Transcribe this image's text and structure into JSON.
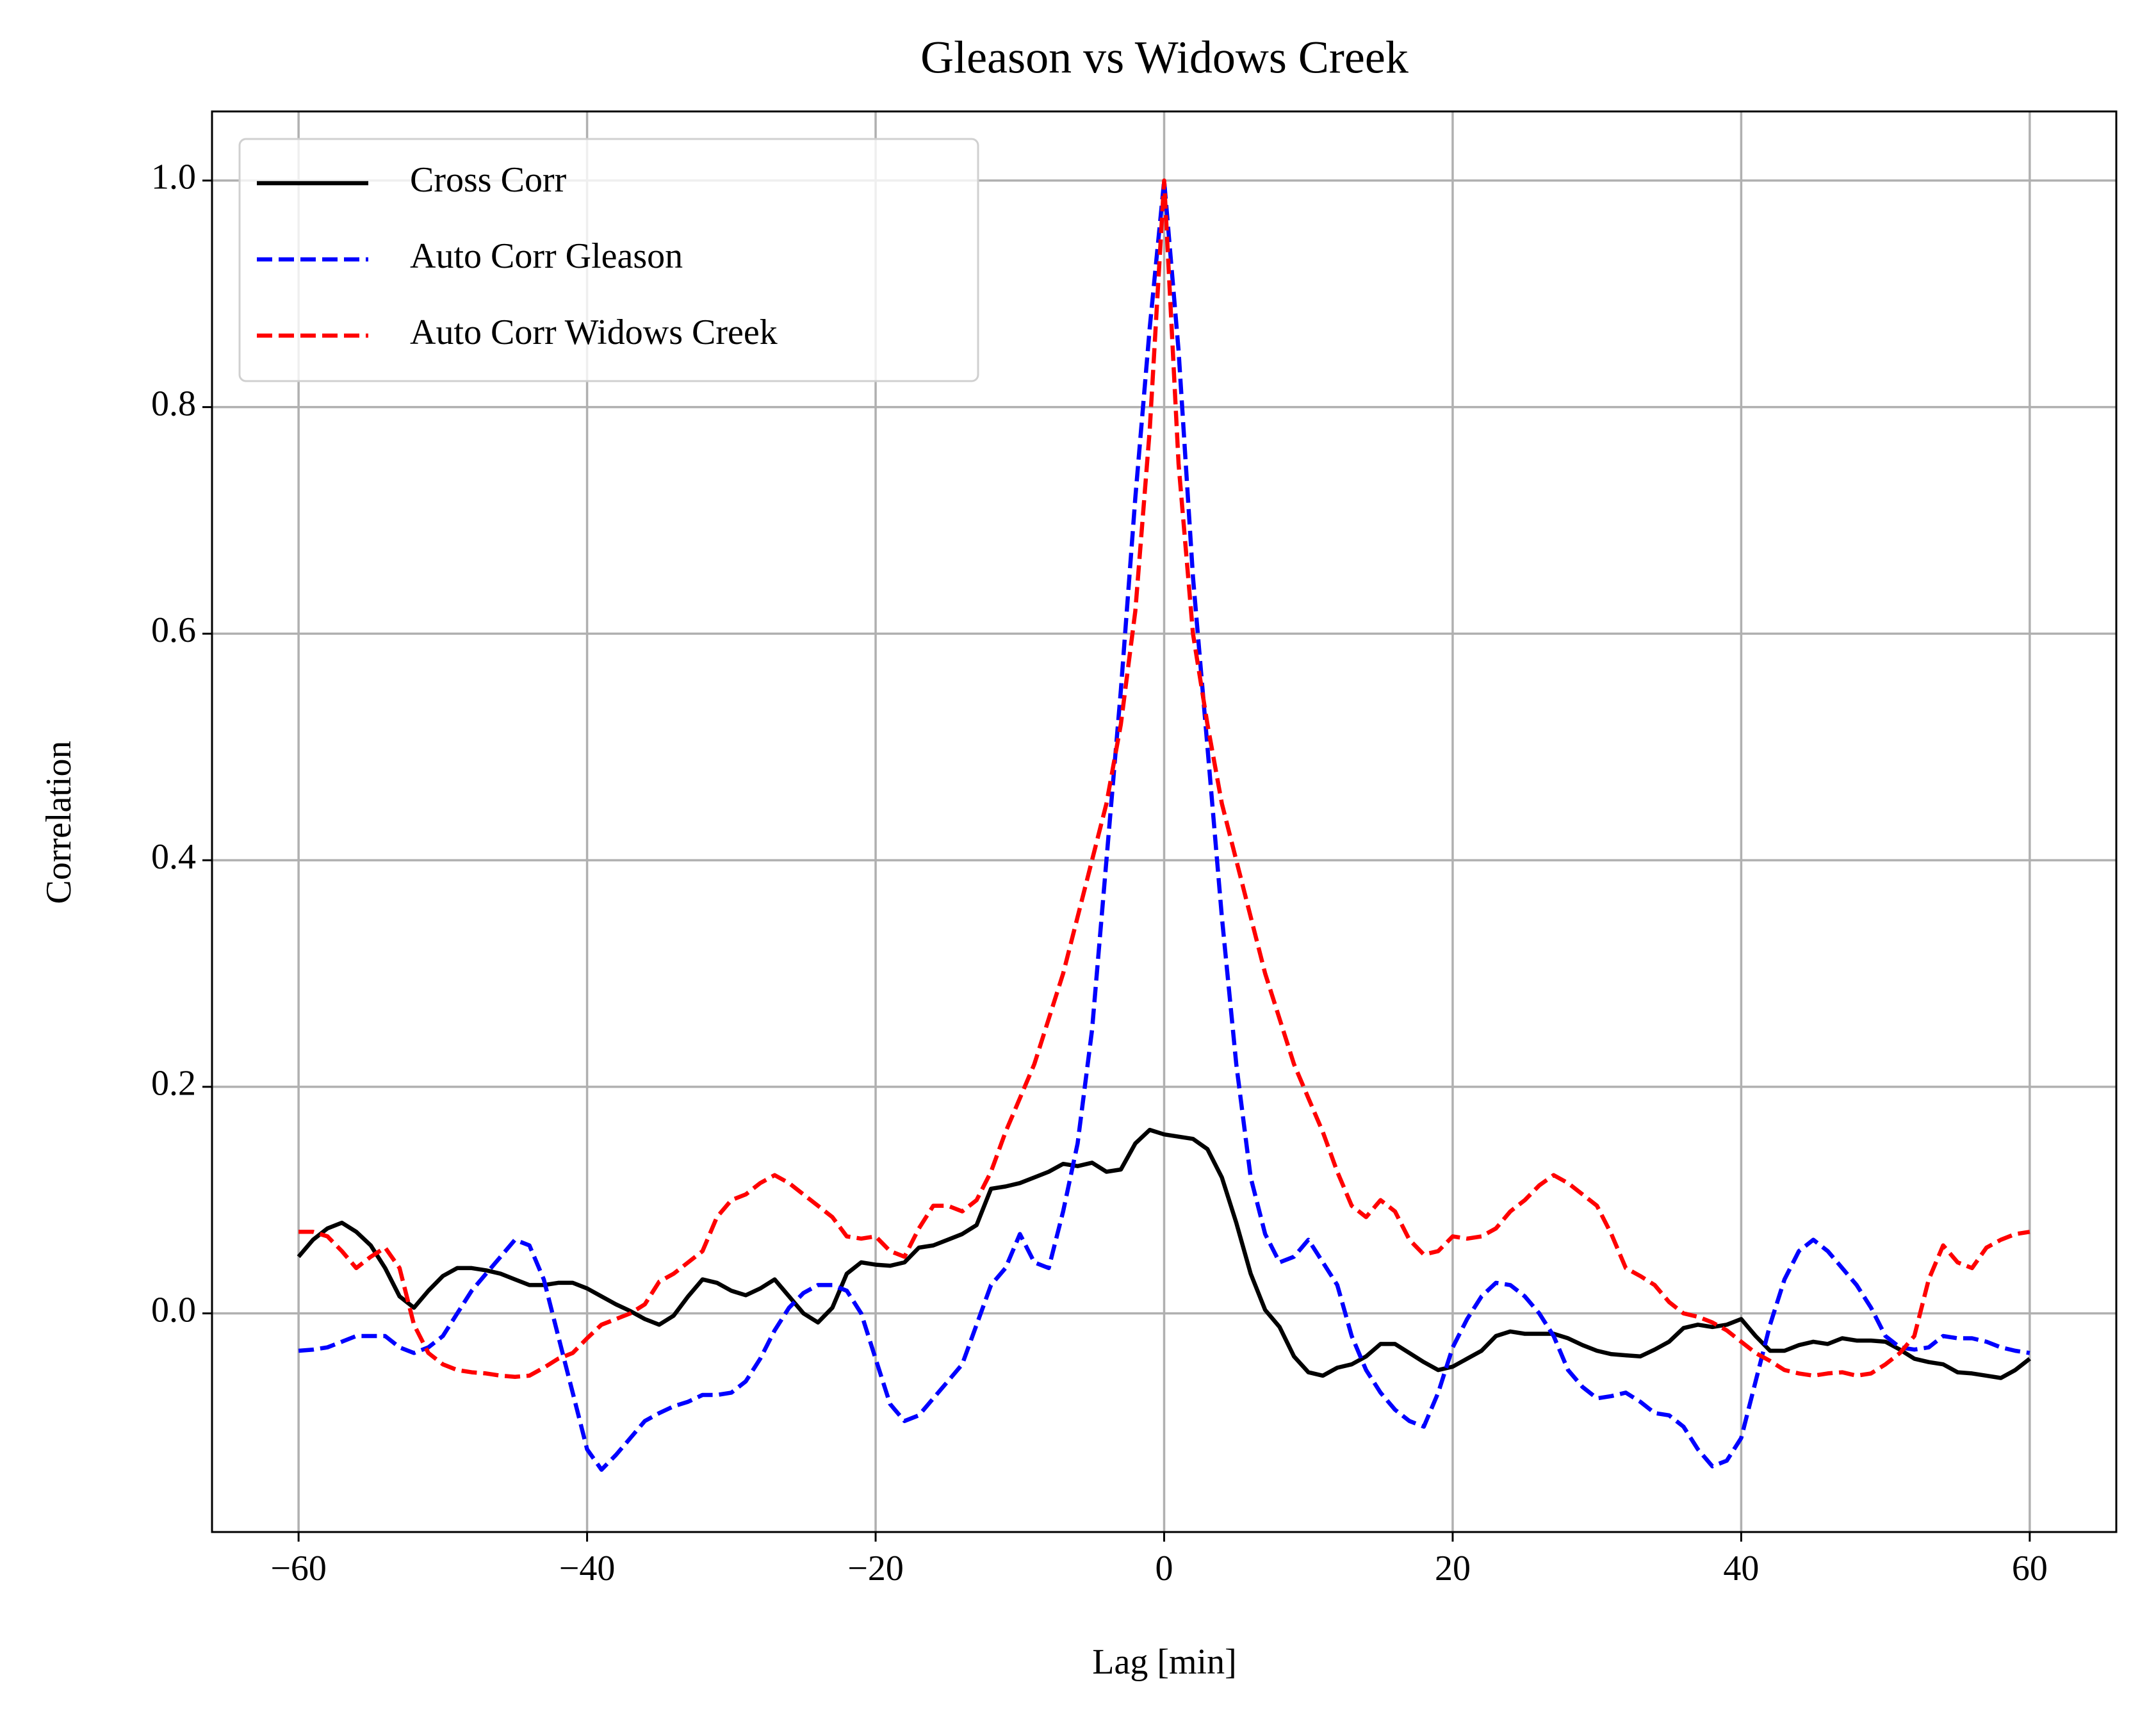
{
  "chart_data": {
    "type": "line",
    "title": "Gleason vs Widows Creek",
    "xlabel": "Lag [min]",
    "ylabel": "Correlation",
    "x": [
      -60,
      -59,
      -58,
      -57,
      -56,
      -55,
      -54,
      -53,
      -52,
      -51,
      -50,
      -49,
      -48,
      -47,
      -46,
      -45,
      -44,
      -43,
      -42,
      -41,
      -40,
      -39,
      -38,
      -37,
      -36,
      -35,
      -34,
      -33,
      -32,
      -31,
      -30,
      -29,
      -28,
      -27,
      -26,
      -25,
      -24,
      -23,
      -22,
      -21,
      -20,
      -19,
      -18,
      -17,
      -16,
      -15,
      -14,
      -13,
      -12,
      -11,
      -10,
      -9,
      -8,
      -7,
      -6,
      -5,
      -4,
      -3,
      -2,
      -1,
      0,
      1,
      2,
      3,
      4,
      5,
      6,
      7,
      8,
      9,
      10,
      11,
      12,
      13,
      14,
      15,
      16,
      17,
      18,
      19,
      20,
      21,
      22,
      23,
      24,
      25,
      26,
      27,
      28,
      29,
      30,
      31,
      32,
      33,
      34,
      35,
      36,
      37,
      38,
      39,
      40,
      41,
      42,
      43,
      44,
      45,
      46,
      47,
      48,
      49,
      50,
      51,
      52,
      53,
      54,
      55,
      56,
      57,
      58,
      59,
      60
    ],
    "series": [
      {
        "name": "Cross Corr",
        "color": "#000000",
        "dashed": false,
        "values": [
          0.05,
          0.065,
          0.075,
          0.08,
          0.072,
          0.06,
          0.04,
          0.015,
          0.005,
          0.02,
          0.033,
          0.04,
          0.04,
          0.038,
          0.035,
          0.03,
          0.025,
          0.025,
          0.027,
          0.027,
          0.022,
          0.015,
          0.008,
          0.002,
          -0.005,
          -0.01,
          -0.002,
          0.015,
          0.03,
          0.027,
          0.02,
          0.016,
          0.022,
          0.03,
          0.015,
          0.0,
          -0.008,
          0.005,
          0.035,
          0.045,
          0.043,
          0.042,
          0.045,
          0.058,
          0.06,
          0.065,
          0.07,
          0.078,
          0.11,
          0.112,
          0.115,
          0.12,
          0.125,
          0.132,
          0.13,
          0.133,
          0.125,
          0.127,
          0.15,
          0.162,
          0.158,
          0.156,
          0.154,
          0.145,
          0.12,
          0.08,
          0.035,
          0.003,
          -0.012,
          -0.038,
          -0.052,
          -0.055,
          -0.048,
          -0.045,
          -0.038,
          -0.027,
          -0.027,
          -0.035,
          -0.043,
          -0.05,
          -0.047,
          -0.04,
          -0.033,
          -0.02,
          -0.016,
          -0.018,
          -0.018,
          -0.018,
          -0.022,
          -0.028,
          -0.033,
          -0.036,
          -0.037,
          -0.038,
          -0.032,
          -0.025,
          -0.013,
          -0.01,
          -0.012,
          -0.01,
          -0.005,
          -0.02,
          -0.033,
          -0.033,
          -0.028,
          -0.025,
          -0.027,
          -0.022,
          -0.024,
          -0.024,
          -0.025,
          -0.032,
          -0.04,
          -0.043,
          -0.045,
          -0.052,
          -0.053,
          -0.055,
          -0.057,
          -0.05,
          -0.04
        ]
      },
      {
        "name": "Auto Corr Gleason",
        "color": "#0000ff",
        "dashed": true,
        "values": [
          -0.033,
          -0.032,
          -0.03,
          -0.025,
          -0.02,
          -0.02,
          -0.02,
          -0.03,
          -0.035,
          -0.03,
          -0.02,
          0.0,
          0.02,
          0.035,
          0.05,
          0.065,
          0.06,
          0.03,
          -0.02,
          -0.07,
          -0.12,
          -0.138,
          -0.125,
          -0.11,
          -0.095,
          -0.088,
          -0.082,
          -0.078,
          -0.072,
          -0.072,
          -0.07,
          -0.06,
          -0.04,
          -0.015,
          0.005,
          0.018,
          0.025,
          0.025,
          0.02,
          0.0,
          -0.04,
          -0.08,
          -0.095,
          -0.09,
          -0.075,
          -0.06,
          -0.045,
          -0.01,
          0.025,
          0.04,
          0.07,
          0.045,
          0.04,
          0.09,
          0.15,
          0.25,
          0.4,
          0.55,
          0.72,
          0.87,
          1.0,
          0.85,
          0.65,
          0.5,
          0.35,
          0.22,
          0.12,
          0.07,
          0.045,
          0.05,
          0.065,
          0.045,
          0.025,
          -0.02,
          -0.05,
          -0.07,
          -0.085,
          -0.095,
          -0.1,
          -0.07,
          -0.03,
          -0.005,
          0.015,
          0.027,
          0.025,
          0.015,
          0.0,
          -0.02,
          -0.05,
          -0.065,
          -0.075,
          -0.073,
          -0.07,
          -0.078,
          -0.088,
          -0.09,
          -0.1,
          -0.12,
          -0.135,
          -0.13,
          -0.11,
          -0.06,
          -0.01,
          0.03,
          0.055,
          0.065,
          0.055,
          0.04,
          0.025,
          0.005,
          -0.02,
          -0.03,
          -0.032,
          -0.03,
          -0.02,
          -0.022,
          -0.022,
          -0.025,
          -0.03,
          -0.033,
          -0.035
        ]
      },
      {
        "name": "Auto Corr Widows Creek",
        "color": "#ff0000",
        "dashed": true,
        "values": [
          0.072,
          0.072,
          0.068,
          0.055,
          0.04,
          0.05,
          0.058,
          0.04,
          -0.01,
          -0.035,
          -0.045,
          -0.05,
          -0.052,
          -0.053,
          -0.055,
          -0.056,
          -0.055,
          -0.048,
          -0.04,
          -0.035,
          -0.022,
          -0.01,
          -0.005,
          0.0,
          0.008,
          0.028,
          0.035,
          0.045,
          0.055,
          0.085,
          0.1,
          0.105,
          0.115,
          0.122,
          0.115,
          0.105,
          0.095,
          0.085,
          0.068,
          0.066,
          0.068,
          0.055,
          0.05,
          0.075,
          0.095,
          0.095,
          0.09,
          0.1,
          0.125,
          0.16,
          0.19,
          0.22,
          0.26,
          0.3,
          0.35,
          0.4,
          0.45,
          0.52,
          0.62,
          0.78,
          1.0,
          0.75,
          0.6,
          0.52,
          0.45,
          0.4,
          0.35,
          0.3,
          0.26,
          0.22,
          0.19,
          0.16,
          0.125,
          0.095,
          0.085,
          0.1,
          0.09,
          0.065,
          0.052,
          0.055,
          0.068,
          0.066,
          0.068,
          0.075,
          0.09,
          0.1,
          0.113,
          0.122,
          0.115,
          0.105,
          0.095,
          0.07,
          0.04,
          0.033,
          0.025,
          0.01,
          0.0,
          -0.003,
          -0.008,
          -0.015,
          -0.025,
          -0.035,
          -0.042,
          -0.05,
          -0.053,
          -0.055,
          -0.053,
          -0.052,
          -0.055,
          -0.053,
          -0.045,
          -0.035,
          -0.02,
          0.03,
          0.06,
          0.045,
          0.04,
          0.058,
          0.065,
          0.07,
          0.072
        ]
      }
    ],
    "xlim": [
      -66,
      66
    ],
    "ylim": [
      -0.193,
      1.061
    ],
    "xticks": [
      {
        "value": -60,
        "label": "−60"
      },
      {
        "value": -40,
        "label": "−40"
      },
      {
        "value": -20,
        "label": "−20"
      },
      0,
      20,
      40,
      60
    ],
    "yticks": [
      {
        "value": 0.0,
        "label": "0.0"
      },
      0.2,
      0.4,
      0.6,
      0.8,
      {
        "value": 1.0,
        "label": "1.0"
      }
    ],
    "grid": true,
    "legend": "upper left"
  }
}
